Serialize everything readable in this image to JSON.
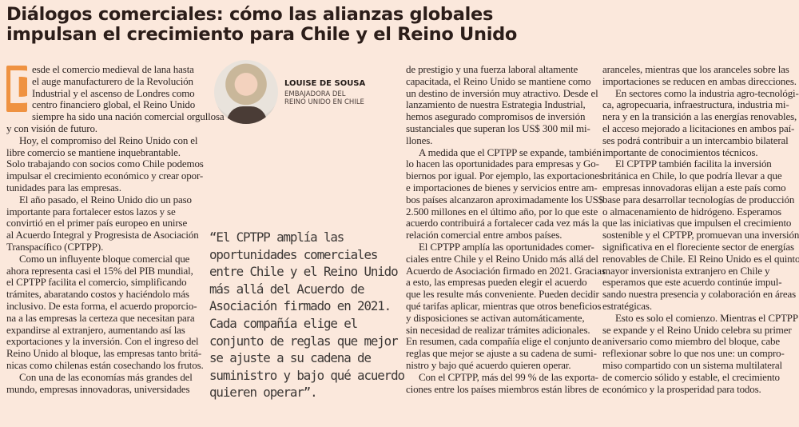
{
  "article": {
    "title_lines": [
      "Diálogos comerciales: cómo las alianzas globales",
      "impulsan el crecimiento para Chile y el Reino Unido"
    ],
    "accent_color": "#ef9241",
    "dropcap": "D",
    "author": {
      "name": "LOUISE DE SOUSA",
      "role_lines": [
        "EMBAJADORA DEL",
        "REINO UNIDO EN CHILE"
      ]
    },
    "quote_lines": [
      "“El CPTPP amplía las",
      "oportunidades comerciales",
      "entre Chile y el Reino Unido",
      "más allá del Acuerdo de",
      "Asociación firmado en 2021.",
      "Cada compañía elige el",
      "conjunto de reglas que mejor",
      "se ajuste a su cadena de",
      "suministro y bajo qué acuerdo",
      "quieren operar”."
    ],
    "columns": [
      [
        [
          "esde el comercio medieval de lana hasta",
          "el auge manufacturero de la Revolución",
          "Industrial y el ascenso de Londres como",
          "centro financiero global, el Reino Unido",
          "siempre ha sido una nación comercial orgullosa",
          "y con visión de futuro."
        ],
        [
          "Hoy, el compromiso del Reino Unido con el",
          "libre comercio se mantiene inquebrantable.",
          "Solo trabajando con socios como Chile podemos",
          "impulsar el crecimiento económico y crear opor-",
          "tunidades para las empresas."
        ],
        [
          "El año pasado, el Reino Unido dio un paso",
          "importante para fortalecer estos lazos y se",
          "convirtió en el primer país europeo en unirse",
          "al Acuerdo Integral y Progresista de Asociación",
          "Transpacífico (CPTPP)."
        ],
        [
          "Como un influyente bloque comercial que",
          "ahora representa casi el 15% del PIB mundial,",
          "el CPTPP facilita el comercio, simplificando",
          "trámites, abaratando costos y haciéndolo más",
          "inclusivo. De esta forma, el acuerdo proporcio-",
          "na a las empresas la certeza que necesitan para",
          "expandirse al extranjero, aumentando así las",
          "exportaciones y la inversión. Con el ingreso del",
          "Reino Unido al bloque, las empresas tanto britá-",
          "nicas como chilenas están cosechando los frutos."
        ],
        [
          "Con una de las economías más grandes del",
          "mundo, empresas innovadoras, universidades"
        ]
      ],
      [
        [
          "de prestigio y una fuerza laboral altamente",
          "capacitada, el Reino Unido se mantiene como",
          "un destino de inversión muy atractivo. Desde el",
          "lanzamiento de nuestra Estrategia Industrial,",
          "hemos asegurado compromisos de inversión",
          "sustanciales que superan los US$ 300 mil mi-",
          "llones."
        ],
        [
          "A medida que el CPTPP se expande, también",
          "lo hacen las oportunidades para empresas y Go-",
          "biernos por igual. Por ejemplo, las exportaciones",
          "e importaciones de bienes y servicios entre am-",
          "bos países alcanzaron aproximadamente los US$",
          "2.500 millones en el último año, por lo que este",
          "acuerdo contribuirá a fortalecer cada vez más la",
          "relación comercial entre ambos países."
        ],
        [
          "El CPTPP amplía las oportunidades comer-",
          "ciales entre Chile y el Reino Unido más allá del",
          "Acuerdo de Asociación firmado en 2021. Gracias",
          "a esto, las empresas pueden elegir el acuerdo",
          "que les resulte más conveniente. Pueden decidir",
          "qué tarifas aplicar, mientras que otros beneficios",
          "y disposiciones se activan automáticamente,",
          "sin necesidad de realizar trámites adicionales.",
          "En resumen, cada compañía elige el conjunto de",
          "reglas que mejor se ajuste a su cadena de sumi-",
          "nistro y bajo qué acuerdo quieren operar."
        ],
        [
          "Con el CPTPP, más del 99 % de las exporta-",
          "ciones entre los países miembros están libres de"
        ]
      ],
      [
        [
          "aranceles, mientras que los aranceles sobre las",
          "importaciones se reducen en ambas direcciones."
        ],
        [
          "En sectores como la industria agro-tecnológi-",
          "ca, agropecuaria, infraestructura, industria mi-",
          "nera y en la transición a las energías renovables,",
          "el acceso mejorado a licitaciones en ambos paí-",
          "ses podrá contribuir a un intercambio bilateral",
          "importante de conocimientos técnicos."
        ],
        [
          "El CPTPP también facilita la inversión",
          "británica en Chile, lo que podría llevar a que",
          "empresas innovadoras elijan a este país como",
          "base para desarrollar tecnologías de producción",
          "o almacenamiento de hidrógeno. Esperamos",
          "que las iniciativas que impulsen el crecimiento",
          "sostenible y el CPTPP, promuevan una inversión",
          "significativa en el floreciente sector de energías",
          "renovables de Chile. El Reino Unido es el quinto",
          "mayor inversionista extranjero en Chile y",
          "esperamos que este acuerdo continúe impul-",
          "sando nuestra presencia y colaboración en áreas",
          "estratégicas."
        ],
        [
          "Esto es solo el comienzo. Mientras el CPTPP",
          "se expande y el Reino Unido celebra su primer",
          "aniversario como miembro del bloque, cabe",
          "reflexionar sobre lo que nos une: un compro-",
          "miso compartido con un sistema multilateral",
          "de comercio sólido y estable, el crecimiento",
          "económico y la prosperidad para todos."
        ]
      ]
    ]
  }
}
